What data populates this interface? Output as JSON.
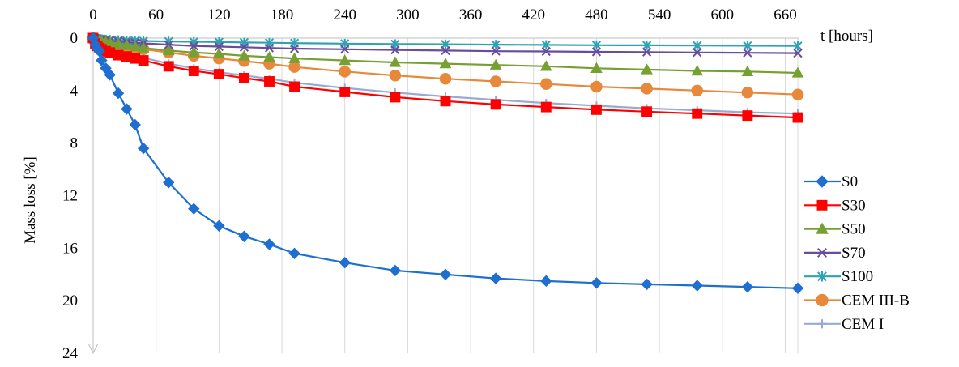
{
  "chart_data": {
    "type": "line",
    "title": "",
    "xlabel": "t [hours]",
    "ylabel": "Mass  loss [%]",
    "xlim": [
      0,
      672
    ],
    "ylim": [
      0,
      24
    ],
    "y_inverted": true,
    "x_axis_position": "top",
    "xticks": [
      0,
      60,
      120,
      180,
      240,
      300,
      360,
      420,
      480,
      540,
      600,
      660
    ],
    "yticks": [
      0,
      4,
      8,
      12,
      16,
      20,
      24
    ],
    "grid": "vertical",
    "legend_position": "right",
    "x": [
      0,
      2,
      4,
      6,
      8,
      12,
      16,
      24,
      32,
      40,
      48,
      72,
      96,
      120,
      144,
      168,
      192,
      240,
      288,
      336,
      384,
      432,
      480,
      528,
      576,
      624,
      672
    ],
    "series": [
      {
        "name": "S0",
        "color": "#1f6fd1",
        "marker": "diamond",
        "values": [
          0,
          0.5,
          0.8,
          1.0,
          1.7,
          2.3,
          2.8,
          4.2,
          5.4,
          6.6,
          8.4,
          11.0,
          13.0,
          14.3,
          15.1,
          15.7,
          16.4,
          17.1,
          17.7,
          18.0,
          18.3,
          18.5,
          18.65,
          18.75,
          18.85,
          18.95,
          19.05
        ]
      },
      {
        "name": "S30",
        "color": "#ff0000",
        "marker": "square",
        "values": [
          0,
          0.4,
          0.6,
          0.75,
          0.85,
          1.0,
          1.1,
          1.3,
          1.4,
          1.55,
          1.7,
          2.15,
          2.5,
          2.75,
          3.05,
          3.3,
          3.7,
          4.1,
          4.5,
          4.8,
          5.05,
          5.25,
          5.45,
          5.6,
          5.75,
          5.9,
          6.05
        ]
      },
      {
        "name": "S50",
        "color": "#77a033",
        "marker": "triangle",
        "values": [
          0,
          0.1,
          0.15,
          0.2,
          0.25,
          0.3,
          0.35,
          0.45,
          0.55,
          0.65,
          0.75,
          0.95,
          1.1,
          1.2,
          1.35,
          1.45,
          1.55,
          1.7,
          1.85,
          1.95,
          2.05,
          2.15,
          2.3,
          2.4,
          2.5,
          2.55,
          2.65
        ]
      },
      {
        "name": "S70",
        "color": "#6a4b9c",
        "marker": "x",
        "values": [
          0,
          0.05,
          0.1,
          0.12,
          0.15,
          0.18,
          0.2,
          0.25,
          0.3,
          0.35,
          0.4,
          0.5,
          0.6,
          0.65,
          0.7,
          0.75,
          0.8,
          0.85,
          0.9,
          0.95,
          1.0,
          1.02,
          1.05,
          1.07,
          1.1,
          1.12,
          1.15
        ]
      },
      {
        "name": "S100",
        "color": "#2ea3b3",
        "marker": "asterisk",
        "values": [
          0,
          0.02,
          0.04,
          0.06,
          0.08,
          0.1,
          0.12,
          0.15,
          0.18,
          0.2,
          0.22,
          0.25,
          0.28,
          0.3,
          0.33,
          0.35,
          0.38,
          0.42,
          0.45,
          0.47,
          0.5,
          0.52,
          0.54,
          0.55,
          0.57,
          0.58,
          0.6
        ]
      },
      {
        "name": "CEM III-B",
        "color": "#e8883a",
        "marker": "circle",
        "values": [
          0,
          0.15,
          0.25,
          0.3,
          0.35,
          0.4,
          0.45,
          0.55,
          0.65,
          0.75,
          0.85,
          1.1,
          1.35,
          1.55,
          1.75,
          1.95,
          2.2,
          2.55,
          2.85,
          3.1,
          3.3,
          3.5,
          3.7,
          3.85,
          4.0,
          4.15,
          4.3
        ]
      },
      {
        "name": "CEM I",
        "color": "#9aa9cf",
        "marker": "plus",
        "values": [
          0,
          0.3,
          0.4,
          0.5,
          0.6,
          0.7,
          0.85,
          1.05,
          1.2,
          1.35,
          1.5,
          1.95,
          2.3,
          2.6,
          2.85,
          3.1,
          3.4,
          3.8,
          4.15,
          4.45,
          4.7,
          4.95,
          5.15,
          5.35,
          5.5,
          5.65,
          5.75
        ]
      }
    ]
  }
}
